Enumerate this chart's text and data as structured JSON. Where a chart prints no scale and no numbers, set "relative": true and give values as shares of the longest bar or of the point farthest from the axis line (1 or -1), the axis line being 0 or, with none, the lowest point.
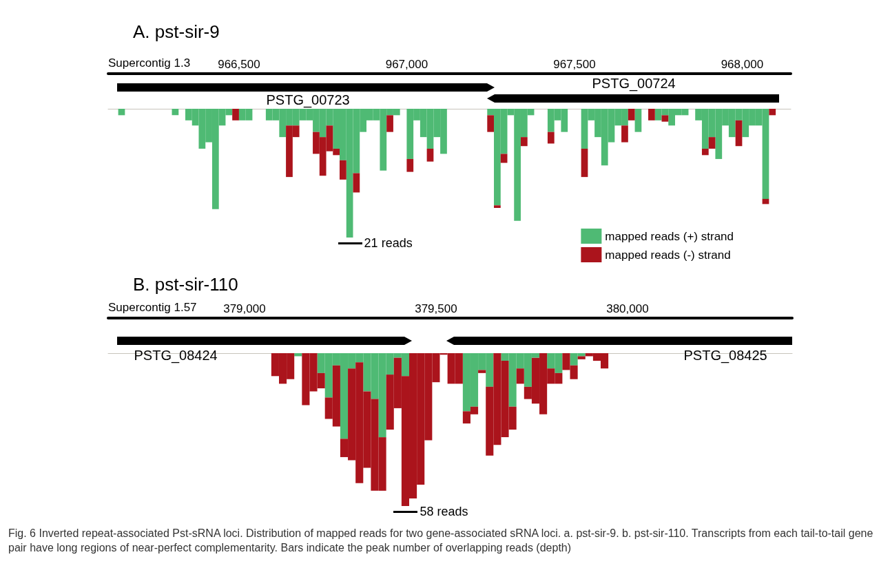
{
  "chart_data": [
    {
      "type": "bar",
      "title": "A. pst-sir-9",
      "xlabel": "Supercontig 1.3",
      "relative": true,
      "stacked": true,
      "grid": false,
      "legend": "bottom right",
      "xlim": [
        966110,
        968145
      ],
      "xticks": [
        {
          "value": 966500,
          "label": "966,500"
        },
        {
          "value": 967000,
          "label": "967,000"
        },
        {
          "value": 967500,
          "label": "967,500"
        },
        {
          "value": 968000,
          "label": "968,000"
        }
      ],
      "x": [
        966150,
        966170,
        966190,
        966210,
        966230,
        966250,
        966270,
        966290,
        966310,
        966330,
        966350,
        966370,
        966390,
        966410,
        966430,
        966450,
        966470,
        966490,
        966510,
        966530,
        966550,
        966570,
        966590,
        966610,
        966630,
        966650,
        966670,
        966690,
        966710,
        966730,
        966750,
        966770,
        966790,
        966810,
        966830,
        966850,
        966870,
        966890,
        966910,
        966930,
        966950,
        966970,
        966990,
        967010,
        967030,
        967050,
        967070,
        967090,
        967110,
        967130,
        967150,
        967170,
        967190,
        967210,
        967230,
        967250,
        967270,
        967290,
        967310,
        967330,
        967350,
        967370,
        967390,
        967410,
        967430,
        967450,
        967470,
        967490,
        967510,
        967530,
        967550,
        967570,
        967590,
        967610,
        967630,
        967650,
        967670,
        967690,
        967710,
        967730,
        967750,
        967770,
        967790,
        967810,
        967830,
        967850,
        967870,
        967890,
        967910,
        967930,
        967950,
        967970,
        967990,
        968010,
        968030,
        968050,
        968070,
        968090,
        968110
      ],
      "series": [
        {
          "name": "mapped reads (+) strand",
          "color": "#4fba74",
          "values": [
            -0.05,
            0,
            0,
            0,
            0,
            0,
            0,
            0,
            -0.05,
            0,
            -0.09,
            -0.13,
            -0.31,
            -0.26,
            -0.78,
            -0.13,
            -0.05,
            0,
            -0.09,
            -0.09,
            0,
            0,
            -0.09,
            -0.09,
            -0.22,
            -0.13,
            -0.13,
            -0.09,
            -0.09,
            -0.18,
            -0.22,
            -0.13,
            -0.31,
            -0.4,
            -1,
            -0.5,
            -0.18,
            -0.09,
            -0.09,
            -0.48,
            -0.05,
            -0.05,
            0,
            -0.39,
            -0.09,
            -0.22,
            -0.31,
            -0.22,
            -0.35,
            0,
            0,
            0,
            0,
            0,
            0,
            -0.05,
            -0.75,
            -0.35,
            -0.05,
            -0.87,
            -0.22,
            -0.05,
            0,
            0,
            -0.18,
            -0.09,
            -0.18,
            0,
            0,
            -0.31,
            -0.09,
            -0.22,
            -0.44,
            -0.26,
            -0.13,
            -0.13,
            0,
            -0.18,
            0,
            0,
            -0.09,
            -0.05,
            -0.13,
            -0.05,
            -0.05,
            0,
            -0.09,
            -0.31,
            -0.22,
            -0.39,
            -0.13,
            -0.22,
            -0.09,
            -0.22,
            -0.13,
            -0.13,
            -0.7,
            0,
            0
          ]
        },
        {
          "name": "mapped reads (-) strand",
          "color": "#ab141c",
          "values": [
            0,
            0,
            0,
            0,
            0,
            0,
            0,
            0,
            0,
            0,
            0,
            0,
            0,
            0,
            0,
            0,
            0,
            -0.09,
            0,
            0,
            0,
            0,
            0,
            0,
            0,
            -0.4,
            -0.09,
            0,
            0,
            -0.17,
            -0.3,
            -0.2,
            -0.05,
            -0.15,
            0,
            -0.15,
            0,
            0,
            0,
            0,
            -0.13,
            0,
            0,
            -0.1,
            0,
            0,
            -0.1,
            0,
            0,
            0,
            0,
            0,
            0,
            0,
            0,
            -0.13,
            -0.02,
            -0.07,
            0,
            0,
            -0.07,
            0,
            0,
            0,
            -0.09,
            0,
            0,
            0,
            0,
            -0.22,
            0,
            0,
            0,
            0,
            0,
            -0.13,
            -0.09,
            0,
            0,
            -0.09,
            0,
            -0.05,
            0,
            0,
            0,
            0,
            0,
            -0.05,
            -0.09,
            0,
            0,
            0,
            -0.2,
            0,
            0,
            0,
            -0.04,
            -0.05,
            0
          ]
        }
      ],
      "annotations": [
        "PSTG_00723",
        "PSTG_00724",
        "21 reads"
      ]
    },
    {
      "type": "bar",
      "title": "B. pst-sir-110",
      "xlabel": "Supercontig 1.57",
      "relative": true,
      "stacked": true,
      "grid": false,
      "xlim": [
        378644,
        380430
      ],
      "xticks": [
        {
          "value": 379000,
          "label": "379,000"
        },
        {
          "value": 379500,
          "label": "379,500"
        },
        {
          "value": 380000,
          "label": "380,000"
        }
      ],
      "x": [
        379080,
        379100,
        379120,
        379140,
        379160,
        379180,
        379200,
        379220,
        379240,
        379260,
        379280,
        379300,
        379320,
        379340,
        379360,
        379380,
        379400,
        379420,
        379440,
        379460,
        379480,
        379500,
        379520,
        379540,
        379560,
        379580,
        379600,
        379620,
        379640,
        379660,
        379680,
        379700,
        379720,
        379740,
        379760,
        379780,
        379800,
        379820,
        379840,
        379860,
        379880,
        379900,
        379920,
        379940
      ],
      "series": [
        {
          "color": "#4fba74",
          "values": [
            0,
            0,
            0,
            -0.02,
            0,
            0,
            -0.13,
            -0.29,
            -0.08,
            -0.56,
            -0.1,
            -0.06,
            -0.25,
            -0.3,
            -0.55,
            -0.14,
            -0.03,
            -0.15,
            0,
            0,
            0,
            0,
            0,
            0,
            0,
            -0.38,
            -0.35,
            -0.11,
            -0.22,
            0,
            -0.05,
            -0.35,
            -0.1,
            -0.22,
            -0.03,
            0,
            -0.1,
            -0.13,
            0,
            -0.08,
            -0.02,
            0,
            0,
            0
          ]
        },
        {
          "color": "#ab141c",
          "values": [
            -0.15,
            -0.2,
            -0.17,
            0,
            -0.34,
            -0.25,
            -0.1,
            -0.14,
            -0.4,
            -0.12,
            -0.6,
            -0.79,
            -0.5,
            -0.6,
            -0.35,
            -0.36,
            -0.33,
            -0.85,
            -0.95,
            -0.86,
            -0.57,
            -0.19,
            -0.01,
            -0.2,
            -0.2,
            -0.08,
            -0.05,
            -0.02,
            -0.45,
            -0.6,
            -0.5,
            -0.15,
            -0.1,
            -0.08,
            -0.3,
            -0.4,
            -0.1,
            -0.07,
            -0.11,
            -0.09,
            -0.02,
            -0.02,
            -0.05,
            -0.1
          ]
        }
      ],
      "annotations": [
        "PSTG_08424",
        "PSTG_08425",
        "58 reads",
        "Fig. 6 Inverted repeat-associated Pst-sRNA loci. Distribution of mapped reads for two gene-associated sRNA loci. a. pst-sir-9. b. pst-sir-110. Transcripts from each tail-to-tail gene pair have long regions of near-perfect complementarity. Bars indicate the peak number of overlapping reads (depth)"
      ]
    }
  ]
}
